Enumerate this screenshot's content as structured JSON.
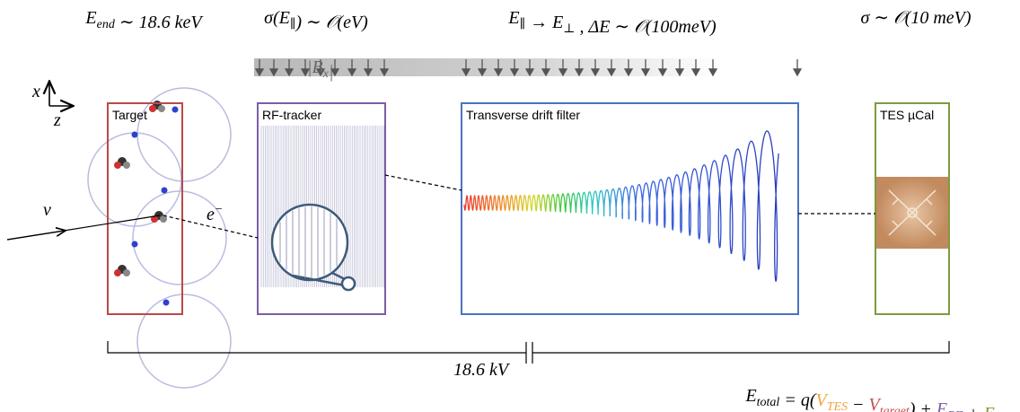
{
  "top_labels": [
    [
      {
        "text": "E",
        "sub": "end"
      },
      {
        "text": " ∼ 18.6 "
      },
      {
        "text": "keV"
      }
    ],
    [
      {
        "text": "σ(E",
        "sub": "∥"
      },
      {
        "text": ") ∼ 𝒪(eV)"
      }
    ],
    [
      {
        "text": "E",
        "sub": "∥"
      },
      {
        "text": " → E",
        "sub": "⊥"
      },
      {
        "text": " ,  ΔE ∼ 𝒪(100meV)"
      }
    ],
    [
      {
        "text": "σ ∼ 𝒪(10 meV)"
      }
    ]
  ],
  "field_label": [
    {
      "text": "|B",
      "sub": "x"
    },
    {
      "text": "|"
    }
  ],
  "axes": {
    "x": "x",
    "z": "z"
  },
  "boxes": [
    {
      "label": "Target",
      "color": "#b94a48"
    },
    {
      "label": "RF-tracker",
      "color": "#7b5ea7"
    },
    {
      "label": "Transverse drift filter",
      "color": "#4a72c0"
    },
    {
      "label": "TES µCal",
      "color": "#7f9a3e"
    }
  ],
  "particles": {
    "neutrino": "ν",
    "electron": [
      {
        "text": "e",
        "sup": "−"
      }
    ]
  },
  "voltage": "18.6 kV",
  "formula": [
    {
      "text": "E",
      "sub": "total"
    },
    {
      "text": " = q("
    },
    {
      "text": "V",
      "sub": "TES",
      "color": "#f0a33c"
    },
    {
      "text": " − "
    },
    {
      "text": "V",
      "sub": "target",
      "color": "#c0504d"
    },
    {
      "text": ") + "
    },
    {
      "text": "E",
      "sub": "RF",
      "color": "#7b5ea7"
    },
    {
      "text": " + "
    },
    {
      "text": "E",
      "sub": "cal",
      "color": "#7f9a3e"
    }
  ]
}
